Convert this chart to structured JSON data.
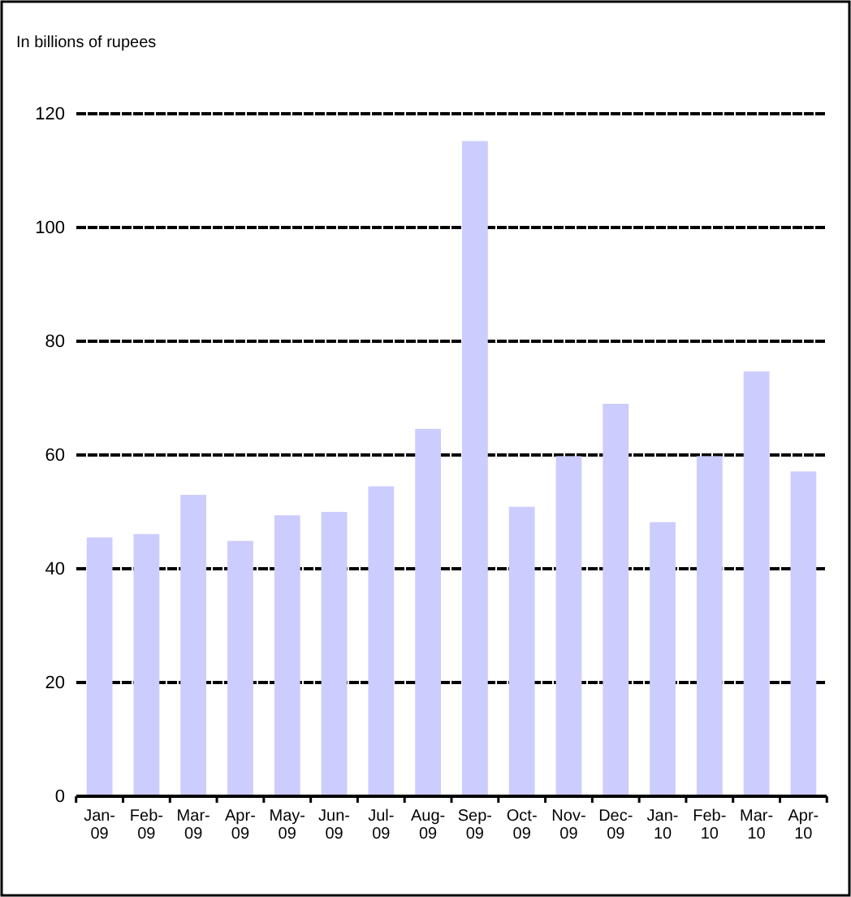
{
  "chart_data": {
    "type": "bar",
    "title": "In billions of rupees",
    "categories": [
      "Jan-09",
      "Feb-09",
      "Mar-09",
      "Apr-09",
      "May-09",
      "Jun-09",
      "Jul-09",
      "Aug-09",
      "Sep-09",
      "Oct-09",
      "Nov-09",
      "Dec-09",
      "Jan-10",
      "Feb-10",
      "Mar-10",
      "Apr-10"
    ],
    "values": [
      45.5,
      46.1,
      53.0,
      44.9,
      49.4,
      50.0,
      54.5,
      64.6,
      115.2,
      50.9,
      59.8,
      69.0,
      48.2,
      59.8,
      74.7,
      57.1
    ],
    "color": "#ccccff",
    "ylim": [
      0,
      120
    ],
    "yticks": [
      0,
      20,
      40,
      60,
      80,
      100,
      120
    ],
    "grid": "y"
  }
}
